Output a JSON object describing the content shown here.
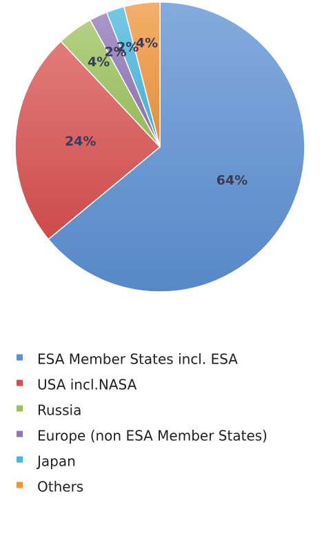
{
  "chart_data": {
    "type": "pie",
    "categories": [
      "ESA Member States incl. ESA",
      "USA incl.NASA",
      "Russia",
      "Europe (non ESA Member States)",
      "Japan",
      "Others"
    ],
    "values": [
      64,
      24,
      4,
      2,
      2,
      4
    ],
    "labels": [
      "64%",
      "24%",
      "4%",
      "2%",
      "2%",
      "4%"
    ],
    "colors": [
      "#5b8fd1",
      "#d84f4f",
      "#9bc25c",
      "#8f74b8",
      "#47b6dc",
      "#f0943a"
    ],
    "title": "",
    "legend": "bottom"
  }
}
